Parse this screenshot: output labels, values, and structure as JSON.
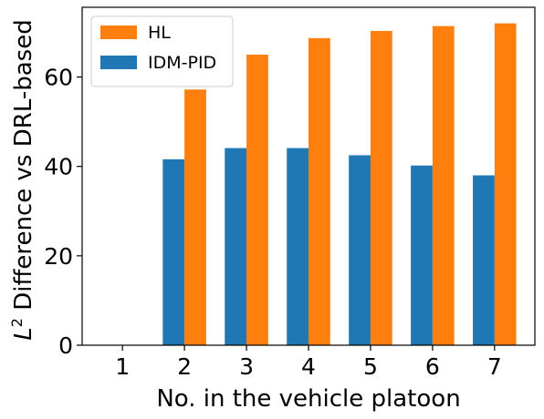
{
  "chart_data": {
    "type": "bar",
    "categories": [
      "1",
      "2",
      "3",
      "4",
      "5",
      "6",
      "7"
    ],
    "series": [
      {
        "name": "IDM-PID",
        "color": "#1f77b4",
        "values": [
          0,
          41.6,
          44.1,
          44.1,
          42.5,
          40.2,
          38.0
        ]
      },
      {
        "name": "HL",
        "color": "#ff7f0e",
        "values": [
          0,
          57.2,
          65.0,
          68.7,
          70.3,
          71.4,
          72.0
        ]
      }
    ],
    "xlabel": "No. in the vehicle platoon",
    "ylabel_symbol": "L",
    "ylabel_superscript": "2",
    "ylabel_rest": " Difference vs DRL-based",
    "ylim": [
      0,
      75.6
    ],
    "yticks": [
      "0",
      "20",
      "40",
      "60"
    ],
    "legend": {
      "placement": "upper-left",
      "order": [
        "HL",
        "IDM-PID"
      ]
    },
    "grid": false
  }
}
